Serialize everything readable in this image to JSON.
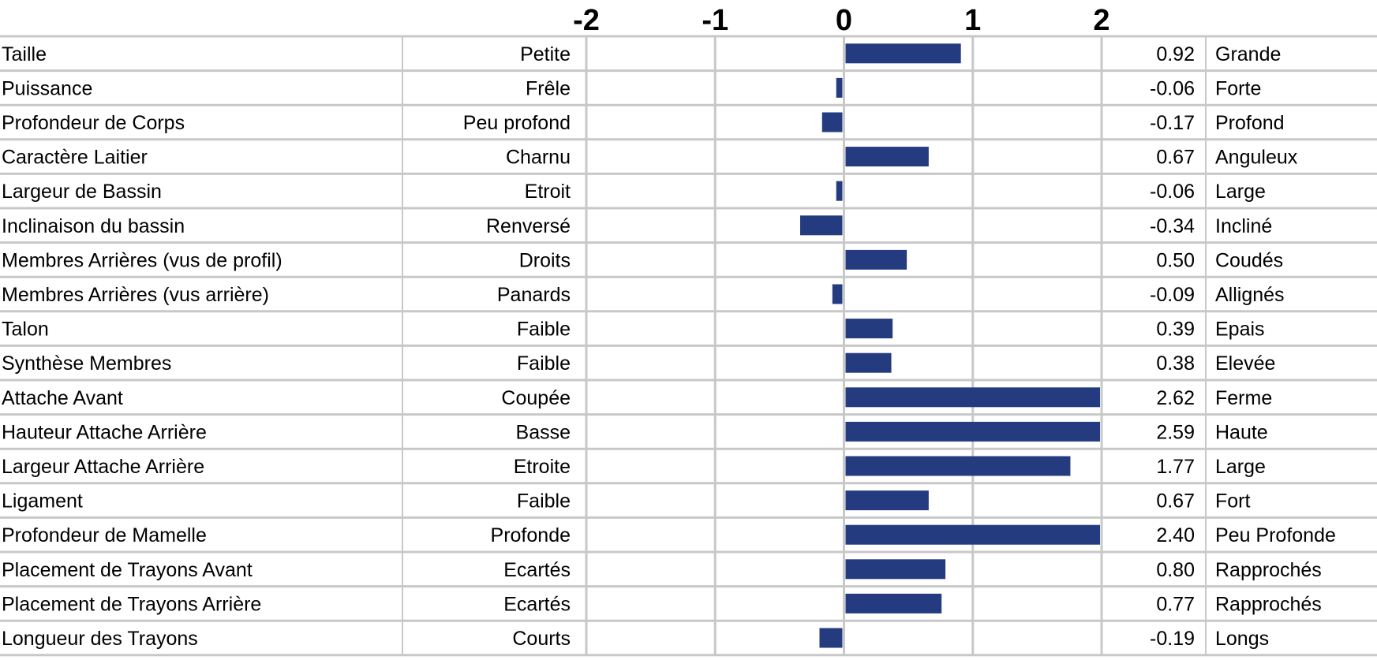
{
  "chart_data": {
    "type": "bar",
    "orientation": "horizontal",
    "xlim": [
      -2,
      2
    ],
    "x_ticks": [
      "-2",
      "-1",
      "0",
      "1",
      "2"
    ],
    "grid": true,
    "bar_color": "#253B80",
    "rows": [
      {
        "trait": "Taille",
        "low": "Petite",
        "value": 0.92,
        "label": "0.92",
        "high": "Grande"
      },
      {
        "trait": "Puissance",
        "low": "Frêle",
        "value": -0.06,
        "label": "-0.06",
        "high": "Forte"
      },
      {
        "trait": "Profondeur de Corps",
        "low": "Peu profond",
        "value": -0.17,
        "label": "-0.17",
        "high": "Profond"
      },
      {
        "trait": "Caractère Laitier",
        "low": "Charnu",
        "value": 0.67,
        "label": "0.67",
        "high": "Anguleux"
      },
      {
        "trait": "Largeur de Bassin",
        "low": "Etroit",
        "value": -0.06,
        "label": "-0.06",
        "high": "Large"
      },
      {
        "trait": "Inclinaison du bassin",
        "low": "Renversé",
        "value": -0.34,
        "label": "-0.34",
        "high": "Incliné"
      },
      {
        "trait": "Membres Arrières (vus de profil)",
        "low": "Droits",
        "value": 0.5,
        "label": "0.50",
        "high": "Coudés"
      },
      {
        "trait": "Membres Arrières (vus arrière)",
        "low": "Panards",
        "value": -0.09,
        "label": "-0.09",
        "high": "Allignés"
      },
      {
        "trait": "Talon",
        "low": "Faible",
        "value": 0.39,
        "label": "0.39",
        "high": "Epais"
      },
      {
        "trait": "Synthèse Membres",
        "low": "Faible",
        "value": 0.38,
        "label": "0.38",
        "high": "Elevée"
      },
      {
        "trait": "Attache Avant",
        "low": "Coupée",
        "value": 2.62,
        "label": "2.62",
        "high": "Ferme"
      },
      {
        "trait": "Hauteur Attache Arrière",
        "low": "Basse",
        "value": 2.59,
        "label": "2.59",
        "high": "Haute"
      },
      {
        "trait": "Largeur Attache Arrière",
        "low": "Etroite",
        "value": 1.77,
        "label": "1.77",
        "high": "Large"
      },
      {
        "trait": "Ligament",
        "low": "Faible",
        "value": 0.67,
        "label": "0.67",
        "high": "Fort"
      },
      {
        "trait": "Profondeur de Mamelle",
        "low": "Profonde",
        "value": 2.4,
        "label": "2.40",
        "high": "Peu Profonde"
      },
      {
        "trait": "Placement de Trayons Avant",
        "low": "Ecartés",
        "value": 0.8,
        "label": "0.80",
        "high": "Rapprochés"
      },
      {
        "trait": "Placement de Trayons Arrière",
        "low": "Ecartés",
        "value": 0.77,
        "label": "0.77",
        "high": "Rapprochés"
      },
      {
        "trait": "Longueur des Trayons",
        "low": "Courts",
        "value": -0.19,
        "label": "-0.19",
        "high": "Longs"
      }
    ]
  }
}
